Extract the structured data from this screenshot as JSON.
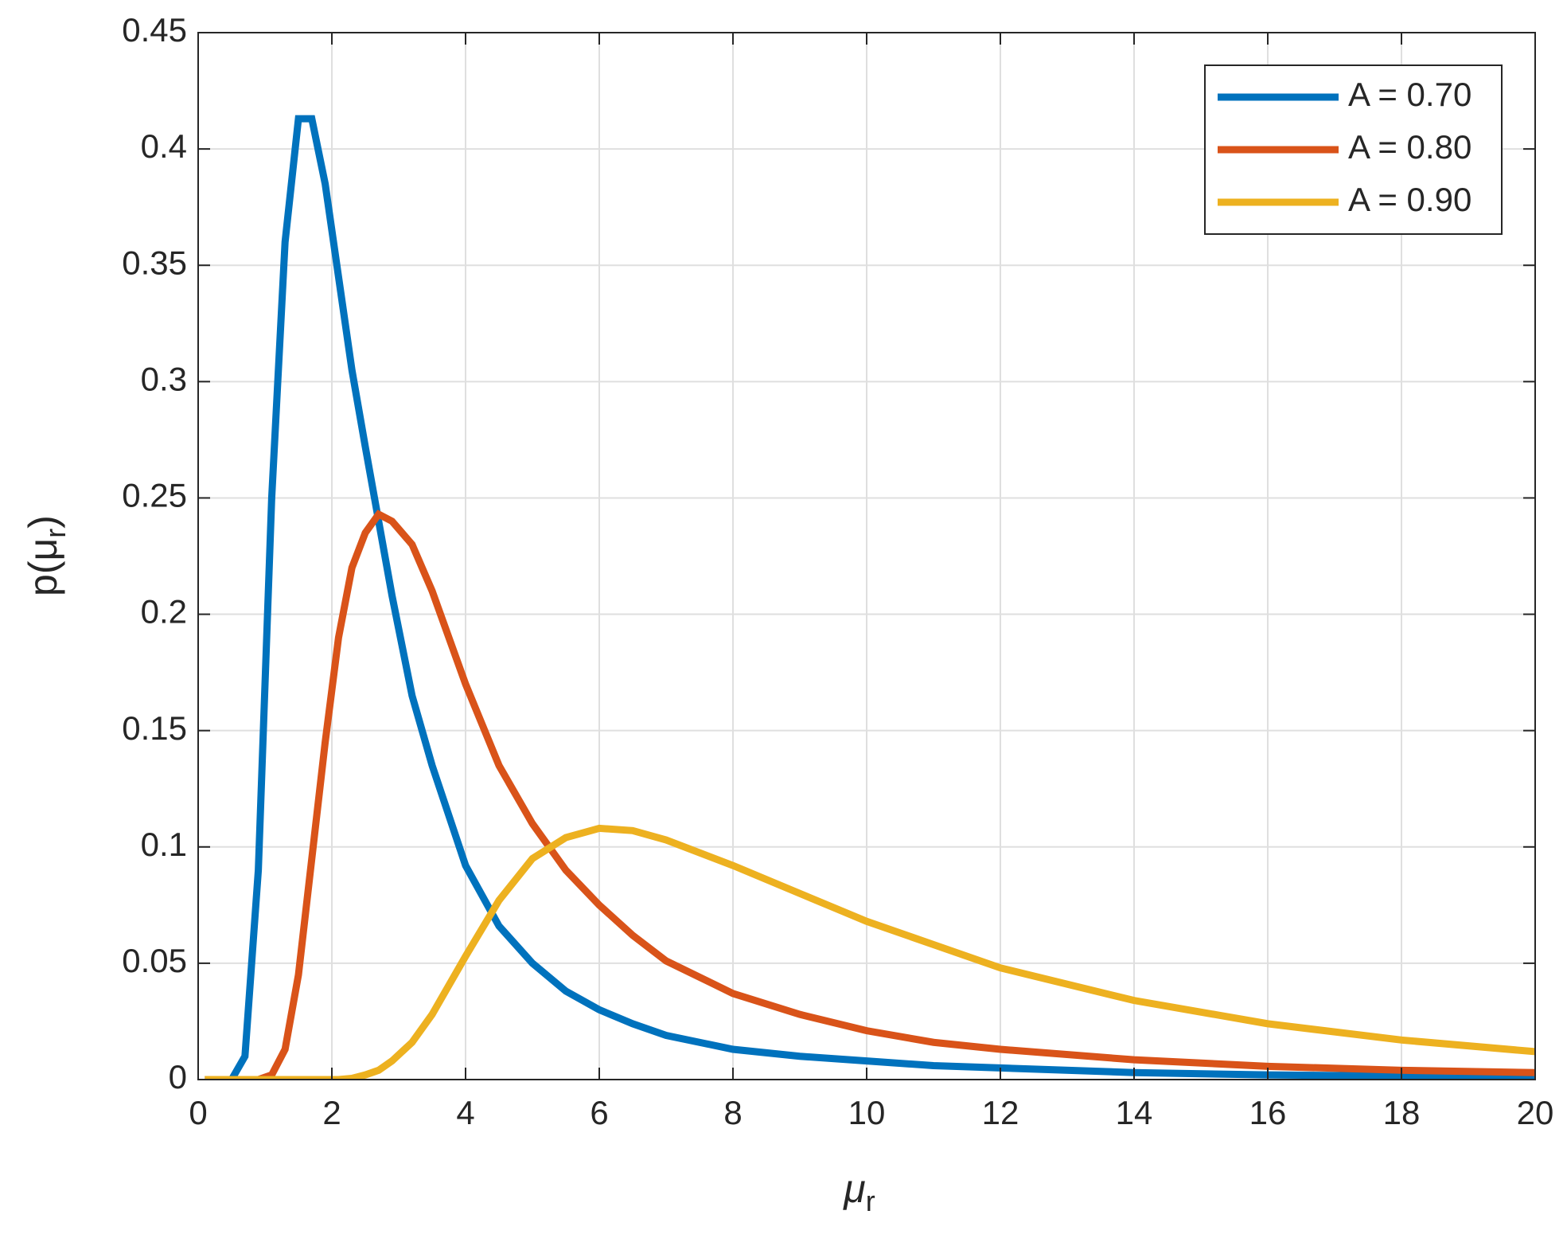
{
  "chart_data": {
    "type": "line",
    "xlabel": [
      "μ",
      "r"
    ],
    "ylabel": [
      "p(μ",
      "r",
      ")"
    ],
    "x": [
      0.1,
      0.5,
      0.7,
      0.9,
      1.1,
      1.3,
      1.5,
      1.7,
      1.9,
      2.1,
      2.3,
      2.5,
      2.7,
      2.9,
      3.2,
      3.5,
      4,
      4.5,
      5,
      5.5,
      6,
      6.5,
      7,
      8,
      9,
      10,
      11,
      12,
      14,
      16,
      18,
      20
    ],
    "series": [
      {
        "name": "A = 0.70",
        "color": "#0072bd",
        "values": [
          0,
          0,
          0.01,
          0.09,
          0.25,
          0.36,
          0.413,
          0.413,
          0.385,
          0.345,
          0.305,
          0.272,
          0.24,
          0.208,
          0.165,
          0.135,
          0.092,
          0.066,
          0.05,
          0.038,
          0.03,
          0.024,
          0.019,
          0.013,
          0.01,
          0.008,
          0.006,
          0.005,
          0.003,
          0.002,
          0.0015,
          0.001
        ]
      },
      {
        "name": "A = 0.80",
        "color": "#d95319",
        "values": [
          0,
          0,
          0,
          0,
          0.002,
          0.013,
          0.045,
          0.095,
          0.145,
          0.19,
          0.22,
          0.235,
          0.243,
          0.24,
          0.23,
          0.21,
          0.17,
          0.135,
          0.11,
          0.09,
          0.075,
          0.062,
          0.051,
          0.037,
          0.028,
          0.021,
          0.016,
          0.013,
          0.0085,
          0.0057,
          0.004,
          0.003
        ]
      },
      {
        "name": "A = 0.90",
        "color": "#edb120",
        "values": [
          0,
          0,
          0,
          0,
          0,
          0,
          0,
          0,
          0,
          0,
          0.0005,
          0.002,
          0.004,
          0.008,
          0.016,
          0.028,
          0.053,
          0.077,
          0.095,
          0.104,
          0.108,
          0.107,
          0.103,
          0.092,
          0.08,
          0.068,
          0.058,
          0.048,
          0.034,
          0.024,
          0.017,
          0.012
        ]
      }
    ],
    "xlim": [
      0,
      20
    ],
    "xticks": [
      0,
      2,
      4,
      6,
      8,
      10,
      12,
      14,
      16,
      18,
      20
    ],
    "ylim": [
      0,
      0.45
    ],
    "yticks": [
      0,
      0.05,
      0.1,
      0.15,
      0.2,
      0.25,
      0.3,
      0.35,
      0.4,
      0.45
    ],
    "grid": true,
    "legend": "upper right"
  }
}
